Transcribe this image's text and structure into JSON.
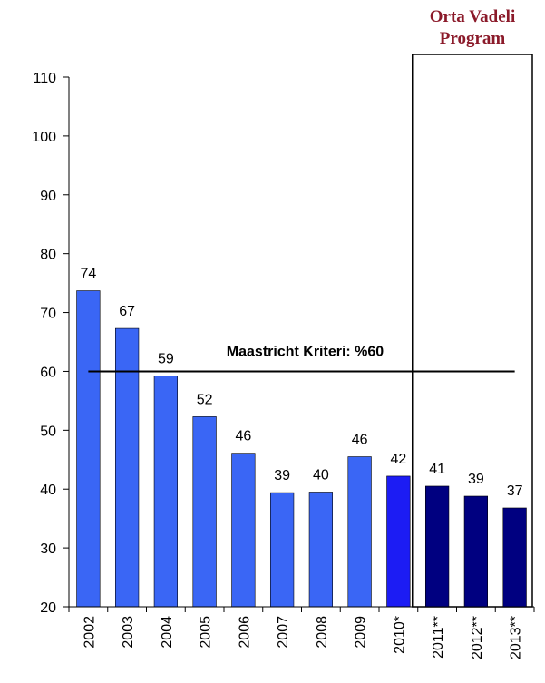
{
  "chart_data": {
    "type": "bar",
    "box_label": [
      "Orta Vadeli",
      "Program"
    ],
    "categories": [
      "2002",
      "2003",
      "2004",
      "2005",
      "2006",
      "2007",
      "2008",
      "2009",
      "2010*",
      "2011**",
      "2012**",
      "2013**"
    ],
    "values": [
      73.7,
      67.3,
      59.2,
      52.3,
      46.1,
      39.4,
      39.5,
      45.5,
      42.2,
      40.5,
      38.8,
      36.8
    ],
    "value_labels": [
      "74",
      "67",
      "59",
      "52",
      "46",
      "39",
      "40",
      "46",
      "42",
      "41",
      "39",
      "37"
    ],
    "colors": [
      "#3a66f5",
      "#3a66f5",
      "#3a66f5",
      "#3a66f5",
      "#3a66f5",
      "#3a66f5",
      "#3a66f5",
      "#3a66f5",
      "#1c1cf4",
      "#000080",
      "#000080",
      "#000080"
    ],
    "reference_line": {
      "value": 60,
      "label": "Maastricht Kriteri: %60"
    },
    "ylim": [
      20,
      110
    ],
    "yticks": [
      20,
      30,
      40,
      50,
      60,
      70,
      80,
      90,
      100,
      110
    ]
  }
}
